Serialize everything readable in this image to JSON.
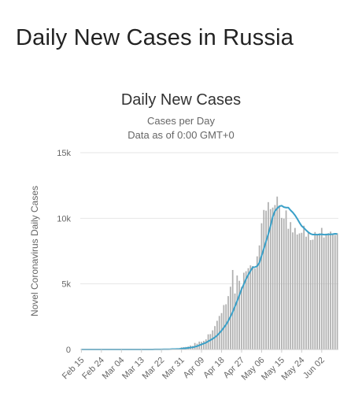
{
  "page": {
    "heading": "Daily New Cases in Russia"
  },
  "chart_data": {
    "type": "bar",
    "title": "Daily New Cases",
    "subtitle": "Cases per Day",
    "subtitle2": "Data as of 0:00 GMT+0",
    "xlabel": "",
    "ylabel": "Novel Coronavirus Daily Cases",
    "ylim": [
      0,
      15000
    ],
    "yticks": [
      0,
      5000,
      10000,
      15000
    ],
    "ytick_labels": [
      "0",
      "5k",
      "10k",
      "15k"
    ],
    "xtick_labels": [
      "Feb 15",
      "Feb 24",
      "Mar 04",
      "Mar 13",
      "Mar 22",
      "Mar 31",
      "Apr 09",
      "Apr 18",
      "Apr 27",
      "May 06",
      "May 15",
      "May 24",
      "Jun 02"
    ],
    "grid": true,
    "colors": {
      "bar": "#b0b0b0",
      "line": "#3aa0c8",
      "grid": "#e6e6e6"
    },
    "series": [
      {
        "type": "bar",
        "values": [
          0,
          0,
          0,
          0,
          0,
          0,
          0,
          0,
          0,
          0,
          0,
          0,
          0,
          0,
          0,
          0,
          0,
          0,
          0,
          0,
          0,
          0,
          0,
          0,
          0,
          0,
          0,
          0,
          0,
          3,
          3,
          10,
          6,
          10,
          4,
          10,
          28,
          27,
          4,
          30,
          30,
          70,
          57,
          54,
          71,
          163,
          182,
          196,
          228,
          302,
          270,
          500,
          440,
          601,
          582,
          658,
          771,
          1154,
          1175,
          1459,
          1786,
          2186,
          2558,
          2774,
          3388,
          3448,
          4070,
          4785,
          6060,
          4268,
          5642,
          5236,
          4774,
          5849,
          5966,
          6198,
          6411,
          6361,
          6175,
          7099,
          7933,
          9623,
          10633,
          10581,
          11231,
          10699,
          10817,
          11012,
          11656,
          10899,
          10028,
          9974,
          10598,
          9200,
          9709,
          8926,
          9263,
          8764,
          8849,
          8894,
          9434,
          8599,
          8915,
          8338,
          8371,
          8952,
          8726,
          8855,
          9268,
          8536,
          8831,
          8863,
          8985,
          8779,
          8726,
          8855
        ]
      },
      {
        "type": "line",
        "values": [
          0,
          0,
          0,
          0,
          0,
          0,
          0,
          0,
          0,
          0,
          0,
          0,
          0,
          0,
          0,
          0,
          0,
          0,
          0,
          0,
          0,
          0,
          0,
          0,
          0,
          0,
          0,
          0,
          0,
          0,
          1,
          2,
          3,
          5,
          5,
          6,
          10,
          13,
          13,
          16,
          19,
          27,
          33,
          40,
          44,
          62,
          79,
          98,
          120,
          141,
          162,
          207,
          252,
          316,
          388,
          452,
          520,
          624,
          714,
          815,
          929,
          1065,
          1249,
          1436,
          1665,
          1892,
          2182,
          2511,
          2854,
          3275,
          3697,
          4141,
          4601,
          4972,
          5371,
          5693,
          5988,
          6260,
          6276,
          6358,
          6617,
          7149,
          7686,
          8251,
          8798,
          9414,
          10120,
          10551,
          10754,
          10921,
          10962,
          10854,
          10813,
          10813,
          10613,
          10449,
          10232,
          9968,
          9672,
          9410,
          9267,
          9087,
          8933,
          8815,
          8757,
          8759,
          8751,
          8771,
          8783,
          8752,
          8762,
          8776,
          8778,
          8788,
          8822,
          8804
        ]
      }
    ]
  }
}
